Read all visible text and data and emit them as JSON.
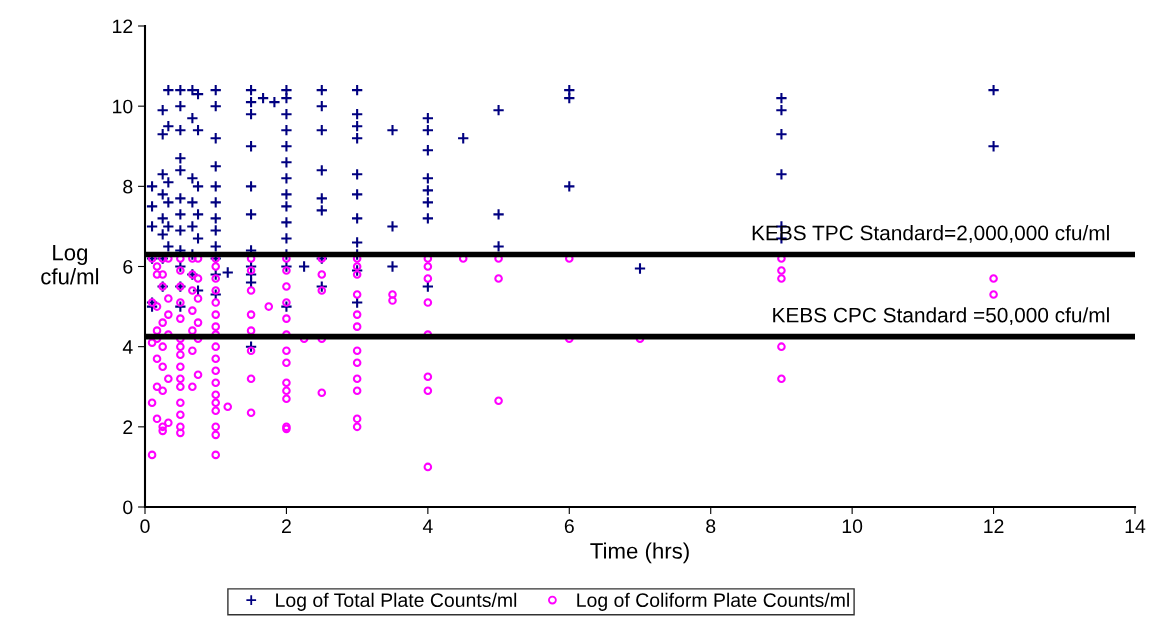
{
  "chart_data": {
    "type": "scatter",
    "xlabel": "Time (hrs)",
    "ylabel": "Log\ncfu/ml",
    "xlim": [
      0,
      14
    ],
    "xticks": [
      0,
      2,
      4,
      6,
      8,
      10,
      12,
      14
    ],
    "ylim": [
      0,
      12
    ],
    "yticks": [
      0,
      2,
      4,
      6,
      8,
      10,
      12
    ],
    "grid": false,
    "legend": "bottom",
    "ref_lines": [
      {
        "axis": "y",
        "value": 6.3,
        "color": "#000000"
      },
      {
        "axis": "y",
        "value": 4.25,
        "color": "#000000"
      }
    ],
    "annotations": [
      "KEBS TPC Standard=2,000,000 cfu/ml",
      "KEBS CPC Standard =50,000 cfu/ml"
    ],
    "series": [
      {
        "name": "Log of Total Plate Counts/ml",
        "color": "#000080",
        "marker": "cross",
        "x": [
          0.1,
          0.1,
          0.1,
          0.1,
          0.1,
          0.1,
          0.25,
          0.25,
          0.25,
          0.25,
          0.25,
          0.25,
          0.25,
          0.25,
          0.33,
          0.33,
          0.33,
          0.33,
          0.33,
          0.33,
          0.5,
          0.5,
          0.5,
          0.5,
          0.5,
          0.5,
          0.5,
          0.5,
          0.5,
          0.5,
          0.5,
          0.5,
          0.67,
          0.67,
          0.67,
          0.67,
          0.67,
          0.67,
          0.67,
          0.75,
          0.75,
          0.75,
          0.75,
          0.75,
          0.75,
          1,
          1,
          1,
          1,
          1,
          1,
          1,
          1,
          1,
          1,
          1,
          1,
          1.17,
          1.5,
          1.5,
          1.5,
          1.5,
          1.5,
          1.5,
          1.5,
          1.5,
          1.5,
          1.5,
          1.5,
          1.67,
          1.83,
          2,
          2,
          2,
          2,
          2,
          2,
          2,
          2,
          2,
          2,
          2,
          2,
          2,
          2,
          2.25,
          2.5,
          2.5,
          2.5,
          2.5,
          2.5,
          2.5,
          2.5,
          2.5,
          3,
          3,
          3,
          3,
          3,
          3,
          3,
          3,
          3,
          3,
          3,
          3.5,
          3.5,
          3.5,
          4,
          4,
          4,
          4,
          4,
          4,
          4,
          4,
          4.5,
          5,
          5,
          5,
          6,
          6,
          6,
          7,
          9,
          9,
          9,
          9,
          9,
          9,
          12,
          12
        ],
        "values": [
          8.0,
          7.5,
          7.0,
          6.2,
          5.1,
          5.0,
          9.9,
          9.3,
          8.3,
          7.8,
          7.2,
          6.8,
          6.2,
          5.5,
          10.4,
          9.5,
          8.1,
          7.6,
          7.0,
          6.5,
          10.4,
          10.0,
          9.4,
          8.7,
          8.4,
          7.7,
          7.3,
          6.9,
          6.4,
          6.0,
          5.5,
          5.0,
          10.4,
          9.7,
          8.2,
          7.6,
          7.0,
          6.3,
          5.8,
          10.3,
          9.4,
          8.0,
          7.3,
          6.7,
          5.4,
          10.4,
          10.0,
          9.2,
          8.5,
          8.0,
          7.6,
          7.2,
          6.9,
          6.5,
          6.2,
          5.8,
          5.3,
          5.85,
          10.4,
          10.1,
          9.8,
          9.0,
          8.0,
          7.3,
          6.4,
          6.0,
          5.8,
          5.6,
          4.0,
          10.2,
          10.1,
          10.4,
          10.2,
          9.8,
          9.4,
          9.0,
          8.6,
          8.2,
          7.8,
          7.5,
          7.1,
          6.7,
          6.3,
          6.0,
          5.0,
          6.0,
          10.4,
          10.0,
          9.4,
          8.4,
          7.7,
          7.4,
          6.2,
          5.5,
          10.4,
          9.8,
          9.5,
          9.2,
          8.3,
          7.8,
          7.2,
          6.6,
          6.3,
          5.9,
          5.1,
          9.4,
          7.0,
          6.0,
          9.7,
          9.4,
          8.9,
          8.2,
          7.9,
          7.6,
          7.2,
          5.5,
          9.2,
          9.9,
          7.3,
          6.5,
          10.4,
          10.2,
          8.0,
          5.95,
          10.2,
          9.9,
          9.3,
          8.3,
          7.0,
          6.7,
          10.4,
          9.0
        ]
      },
      {
        "name": "Log of Coliform Plate Counts/ml",
        "color": "#ff00ff",
        "marker": "circle",
        "x": [
          0.1,
          0.1,
          0.1,
          0.1,
          0.1,
          0.17,
          0.17,
          0.17,
          0.17,
          0.17,
          0.17,
          0.17,
          0.17,
          0.25,
          0.25,
          0.25,
          0.25,
          0.25,
          0.25,
          0.25,
          0.25,
          0.25,
          0.33,
          0.33,
          0.33,
          0.33,
          0.33,
          0.33,
          0.5,
          0.5,
          0.5,
          0.5,
          0.5,
          0.5,
          0.5,
          0.5,
          0.5,
          0.5,
          0.5,
          0.5,
          0.5,
          0.5,
          0.5,
          0.67,
          0.67,
          0.67,
          0.67,
          0.67,
          0.67,
          0.67,
          0.75,
          0.75,
          0.75,
          0.75,
          0.75,
          0.75,
          1,
          1,
          1,
          1,
          1,
          1,
          1,
          1,
          1,
          1,
          1,
          1,
          1,
          1,
          1,
          1,
          1,
          1,
          1.17,
          1.5,
          1.5,
          1.5,
          1.5,
          1.5,
          1.5,
          1.5,
          1.5,
          1.75,
          2,
          2,
          2,
          2,
          2,
          2,
          2,
          2,
          2,
          2,
          2,
          2,
          2,
          2.25,
          2.5,
          2.5,
          2.5,
          2.5,
          2.5,
          3,
          3,
          3,
          3,
          3,
          3,
          3,
          3,
          3,
          3,
          3,
          3,
          3.5,
          3.5,
          4,
          4,
          4,
          4,
          4,
          4,
          4,
          4,
          4.5,
          5,
          5,
          5,
          6,
          6,
          7,
          9,
          9,
          9,
          9,
          9,
          12,
          12
        ],
        "values": [
          6.2,
          5.1,
          4.1,
          2.6,
          1.3,
          6.0,
          5.8,
          5.0,
          4.4,
          4.2,
          3.7,
          3.0,
          2.2,
          6.2,
          5.8,
          5.5,
          4.6,
          4.0,
          3.5,
          2.9,
          2.0,
          1.9,
          6.2,
          5.2,
          4.8,
          4.3,
          3.2,
          2.1,
          6.2,
          5.9,
          5.5,
          5.1,
          4.7,
          4.2,
          4.0,
          3.8,
          3.5,
          3.2,
          3.0,
          2.6,
          2.3,
          2.0,
          1.85,
          6.2,
          5.8,
          5.4,
          4.9,
          4.4,
          3.9,
          3.0,
          6.2,
          5.7,
          5.2,
          4.6,
          4.2,
          3.3,
          6.2,
          6.0,
          5.7,
          5.4,
          5.1,
          4.8,
          4.5,
          4.3,
          4.0,
          3.7,
          3.4,
          3.1,
          2.8,
          2.6,
          2.4,
          2.0,
          1.8,
          1.3,
          2.5,
          6.2,
          5.9,
          5.4,
          4.8,
          4.4,
          3.9,
          3.2,
          2.35,
          5.0,
          6.2,
          5.9,
          5.5,
          5.1,
          4.7,
          4.3,
          3.9,
          3.6,
          3.1,
          2.9,
          2.7,
          2.0,
          1.95,
          4.2,
          6.2,
          5.8,
          5.4,
          4.2,
          2.85,
          6.2,
          6.0,
          5.8,
          5.3,
          4.8,
          4.5,
          3.9,
          3.6,
          3.2,
          2.9,
          2.2,
          2.0,
          5.3,
          5.15,
          6.2,
          6.0,
          5.7,
          5.1,
          4.3,
          3.25,
          2.9,
          1.0,
          6.2,
          6.2,
          5.7,
          2.65,
          6.2,
          4.2,
          4.2,
          6.2,
          5.9,
          5.7,
          4.0,
          3.2,
          5.7,
          5.3
        ]
      }
    ]
  }
}
